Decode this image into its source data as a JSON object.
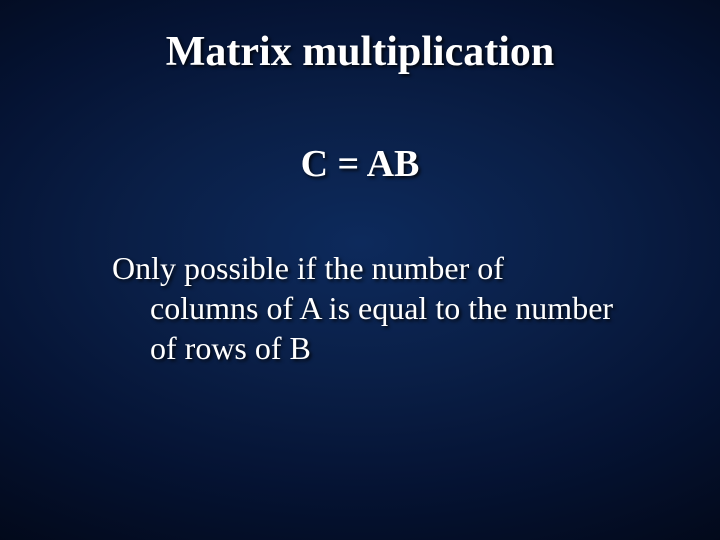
{
  "slide": {
    "title": "Matrix multiplication",
    "equation": "C = AB",
    "body_line1": "Only possible if the number of",
    "body_line2": "columns of A is equal to the number",
    "body_line3": "of rows of B",
    "background_gradient": {
      "type": "radial",
      "center_color": "#0d2a5c",
      "mid_color": "#0a1f47",
      "outer_color": "#051333",
      "edge_color": "#020818"
    },
    "text_color": "#ffffff",
    "title_fontsize": 42,
    "equation_fontsize": 38,
    "body_fontsize": 32,
    "font_family": "Times New Roman"
  }
}
